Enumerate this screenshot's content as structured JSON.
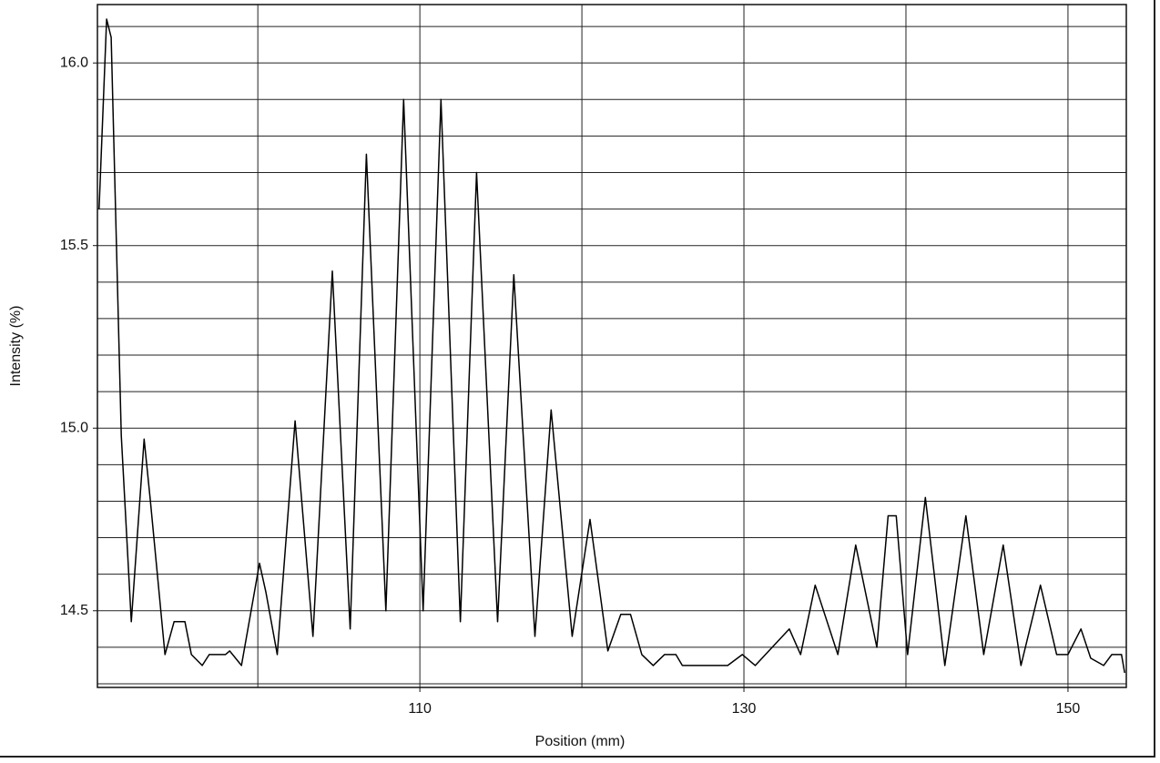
{
  "chart_data": {
    "type": "line",
    "xlabel": "Position (mm)",
    "ylabel": "Intensity (%)",
    "x": [
      90.2,
      90.67,
      90.95,
      91.57,
      92.19,
      92.98,
      93.37,
      94.27,
      94.83,
      95.5,
      95.9,
      96.57,
      97.0,
      98.0,
      98.26,
      98.99,
      100.1,
      100.5,
      101.2,
      102.3,
      103.4,
      104.6,
      105.7,
      106.7,
      107.9,
      109.0,
      110.2,
      111.3,
      112.5,
      113.5,
      114.8,
      115.8,
      117.1,
      118.1,
      119.4,
      120.5,
      121.6,
      122.4,
      123.0,
      123.7,
      124.4,
      125.1,
      125.8,
      126.2,
      129.0,
      129.9,
      130.7,
      132.8,
      133.5,
      134.4,
      135.8,
      136.9,
      138.2,
      138.9,
      139.4,
      140.1,
      141.2,
      142.4,
      143.7,
      144.8,
      146.0,
      147.1,
      148.3,
      149.3,
      150.0,
      150.8,
      151.4,
      152.2,
      152.7,
      153.3,
      153.5
    ],
    "values": [
      15.6,
      16.12,
      16.07,
      14.98,
      14.47,
      14.97,
      14.8,
      14.38,
      14.47,
      14.47,
      14.38,
      14.35,
      14.38,
      14.38,
      14.39,
      14.35,
      14.63,
      14.55,
      14.38,
      15.02,
      14.43,
      15.43,
      14.45,
      15.75,
      14.5,
      15.9,
      14.5,
      15.9,
      14.47,
      15.7,
      14.47,
      15.42,
      14.43,
      15.05,
      14.43,
      14.75,
      14.39,
      14.49,
      14.49,
      14.38,
      14.35,
      14.38,
      14.38,
      14.35,
      14.35,
      14.38,
      14.35,
      14.45,
      14.38,
      14.57,
      14.38,
      14.68,
      14.4,
      14.76,
      14.76,
      14.38,
      14.81,
      14.35,
      14.76,
      14.38,
      14.68,
      14.35,
      14.57,
      14.38,
      14.38,
      14.45,
      14.37,
      14.35,
      14.38,
      14.38,
      14.33
    ],
    "color": "#000000",
    "xlim": [
      90.1,
      153.6
    ],
    "ylim": [
      14.29,
      16.16
    ],
    "xticks": [
      110,
      130,
      150
    ],
    "yticks": [
      {
        "value": 14.5,
        "label": "14.5"
      },
      {
        "value": 15,
        "label": "15.0"
      },
      {
        "value": 15.5,
        "label": "15.5"
      },
      {
        "value": 16,
        "label": "16.0"
      }
    ],
    "xgrid": [
      100,
      110,
      120,
      130,
      140,
      150
    ],
    "ygrid": [
      14.3,
      14.4,
      14.5,
      14.6,
      14.7,
      14.8,
      14.9,
      15.0,
      15.1,
      15.2,
      15.3,
      15.4,
      15.5,
      15.6,
      15.7,
      15.8,
      15.9,
      16.0,
      16.1
    ],
    "grid": true
  }
}
